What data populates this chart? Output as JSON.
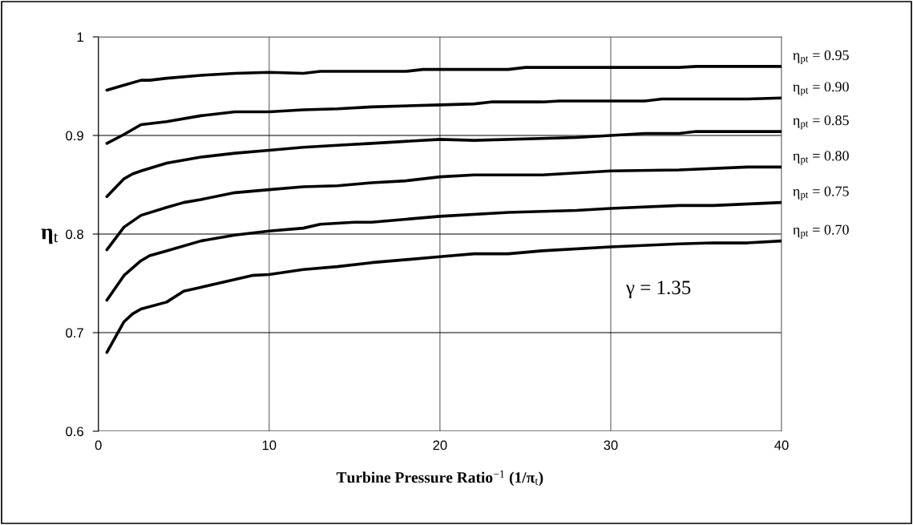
{
  "chart_data": {
    "type": "line",
    "xlabel": "Turbine Pressure Ratio$^{−1}$ (1/π$_{t}$)",
    "ylabel": "η$_{t}$",
    "xlim": [
      0,
      40
    ],
    "xticks": [
      0,
      10,
      20,
      30,
      40
    ],
    "ylim": [
      0.6,
      1
    ],
    "yticks": [
      0.6,
      0.7,
      0.8,
      0.9,
      1
    ],
    "grid": true,
    "marker": "none",
    "line_style": "solid",
    "annotations": [
      "γ = 1.35"
    ],
    "series": [
      {
        "name": "η$_{pt}$ = 0.95",
        "color": "#000000",
        "x": [
          0.5,
          1.5,
          2.5,
          3,
          4,
          6,
          8,
          10,
          12,
          13,
          18,
          19,
          20,
          24,
          25,
          30,
          34,
          35,
          40
        ],
        "values": [
          0.946,
          0.951,
          0.956,
          0.956,
          0.958,
          0.961,
          0.963,
          0.964,
          0.963,
          0.965,
          0.965,
          0.967,
          0.967,
          0.967,
          0.969,
          0.969,
          0.969,
          0.97,
          0.97
        ]
      },
      {
        "name": "η$_{pt}$ = 0.90",
        "color": "#000000",
        "x": [
          0.5,
          1.5,
          2.5,
          4,
          6,
          8,
          10,
          12,
          14,
          16,
          20,
          22,
          23,
          26,
          27,
          32,
          33,
          38,
          40
        ],
        "values": [
          0.892,
          0.901,
          0.911,
          0.914,
          0.92,
          0.924,
          0.924,
          0.926,
          0.927,
          0.929,
          0.931,
          0.932,
          0.934,
          0.934,
          0.935,
          0.935,
          0.937,
          0.937,
          0.938
        ]
      },
      {
        "name": "η$_{pt}$ = 0.85",
        "color": "#000000",
        "x": [
          0.5,
          1.5,
          2,
          2.5,
          4,
          6,
          8,
          10,
          12,
          14,
          16,
          20,
          22,
          28,
          30,
          32,
          34,
          35,
          40
        ],
        "values": [
          0.838,
          0.856,
          0.861,
          0.864,
          0.872,
          0.878,
          0.882,
          0.885,
          0.888,
          0.89,
          0.892,
          0.896,
          0.895,
          0.898,
          0.9,
          0.902,
          0.902,
          0.904,
          0.904
        ]
      },
      {
        "name": "η$_{pt}$ = 0.80",
        "color": "#000000",
        "x": [
          0.5,
          1.5,
          2.5,
          4,
          5,
          6,
          8,
          10,
          12,
          14,
          16,
          18,
          20,
          22,
          26,
          30,
          34,
          38,
          40
        ],
        "values": [
          0.784,
          0.807,
          0.819,
          0.827,
          0.832,
          0.835,
          0.842,
          0.845,
          0.848,
          0.849,
          0.852,
          0.854,
          0.858,
          0.86,
          0.86,
          0.864,
          0.865,
          0.868,
          0.868
        ]
      },
      {
        "name": "η$_{pt}$ = 0.75",
        "color": "#000000",
        "x": [
          0.5,
          1.5,
          2.5,
          3,
          4,
          6,
          8,
          10,
          12,
          13,
          15,
          16,
          20,
          24,
          28,
          30,
          34,
          36,
          40
        ],
        "values": [
          0.733,
          0.758,
          0.773,
          0.778,
          0.783,
          0.793,
          0.799,
          0.803,
          0.806,
          0.81,
          0.812,
          0.812,
          0.818,
          0.822,
          0.824,
          0.826,
          0.829,
          0.829,
          0.832
        ]
      },
      {
        "name": "η$_{pt}$ = 0.70",
        "color": "#000000",
        "x": [
          0.5,
          1.5,
          2,
          2.5,
          4,
          5,
          6,
          9,
          10,
          12,
          14,
          16,
          20,
          22,
          24,
          26,
          30,
          34,
          36,
          38,
          40
        ],
        "values": [
          0.68,
          0.711,
          0.719,
          0.724,
          0.731,
          0.742,
          0.746,
          0.758,
          0.759,
          0.764,
          0.767,
          0.771,
          0.777,
          0.78,
          0.78,
          0.783,
          0.787,
          0.79,
          0.791,
          0.791,
          0.793
        ]
      }
    ]
  }
}
